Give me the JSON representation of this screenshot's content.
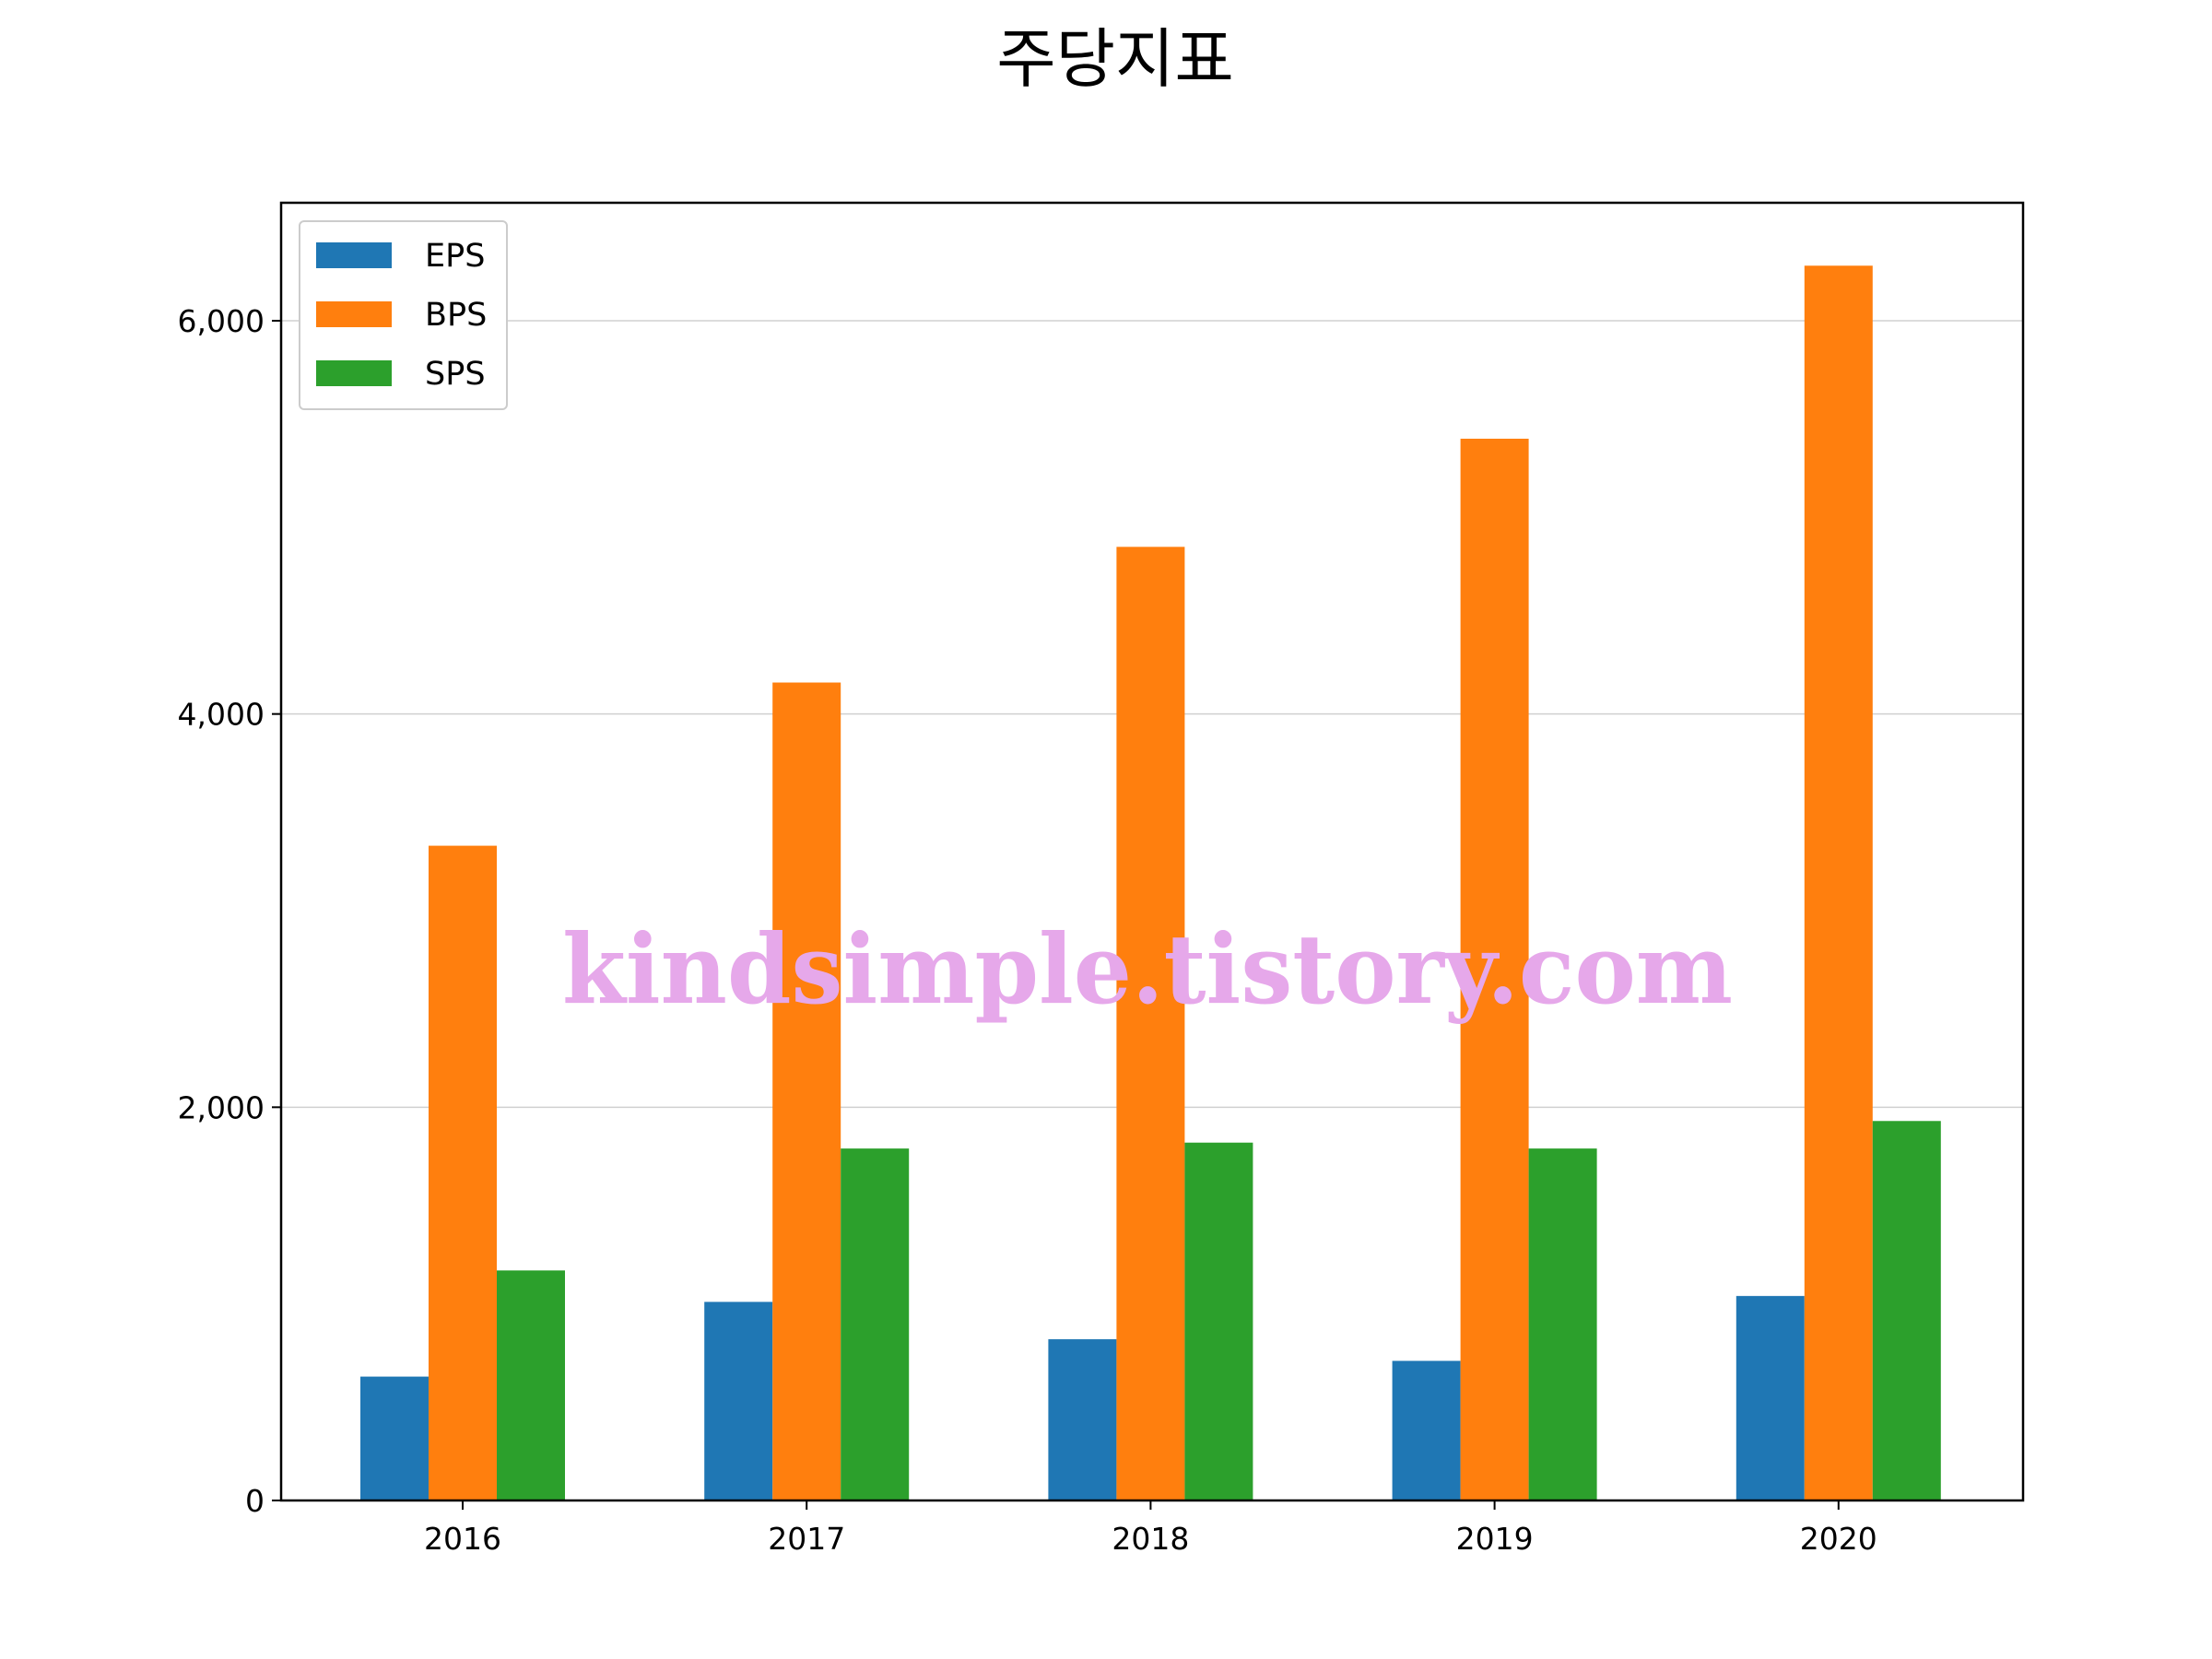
{
  "chart_data": {
    "type": "bar",
    "title": "주당지표",
    "xlabel": "",
    "ylabel": "",
    "categories": [
      "2016",
      "2017",
      "2018",
      "2019",
      "2020"
    ],
    "series": [
      {
        "name": "EPS",
        "color": "#1f77b4",
        "values": [
          630,
          1010,
          820,
          710,
          1040
        ]
      },
      {
        "name": "BPS",
        "color": "#ff7f0e",
        "values": [
          3330,
          4160,
          4850,
          5400,
          6280
        ]
      },
      {
        "name": "SPS",
        "color": "#2ca02c",
        "values": [
          1170,
          1790,
          1820,
          1790,
          1930
        ]
      }
    ],
    "ylim": [
      0,
      6600
    ],
    "yticks": [
      0,
      2000,
      4000,
      6000
    ],
    "ytick_labels": [
      "0",
      "2,000",
      "4,000",
      "6,000"
    ],
    "grid": "y",
    "legend_position": "top-left",
    "watermark": {
      "text": "kindsimple.tistory.com",
      "color": "#e6a8ea"
    }
  }
}
